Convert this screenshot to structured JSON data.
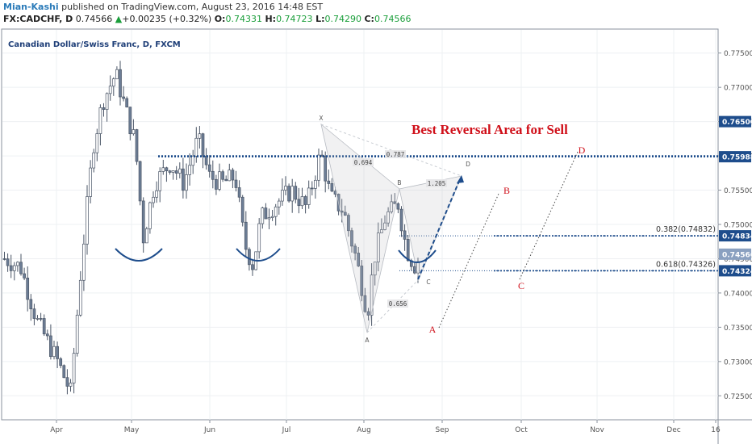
{
  "header": {
    "publisher": "Mian-Kashi",
    "published_text": "published on TradingView.com, August 23, 2016 14:48 EST",
    "symbol": "FX:CADCHF, D",
    "last": "0.74566",
    "change_arrow": "▲",
    "change": "+0.00235 (+0.32%)",
    "open_label": "O:",
    "open": "0.74331",
    "high_label": "H:",
    "high": "0.74723",
    "low_label": "L:",
    "low": "0.74290",
    "close_label": "C:",
    "close": "0.74566"
  },
  "chart_data": {
    "type": "candlestick",
    "title": "Canadian Dollar/Swiss Franc, D, FXCM",
    "ylim": [
      0.7215,
      0.7785
    ],
    "y_ticks": [
      "0.77500",
      "0.77000",
      "0.76500",
      "0.76000",
      "0.75500",
      "0.75000",
      "0.74500",
      "0.74000",
      "0.73500",
      "0.73000",
      "0.72500"
    ],
    "x_ticks": [
      "Apr",
      "May",
      "Jun",
      "Jul",
      "Aug",
      "Sep",
      "Oct",
      "Nov",
      "Dec",
      "16"
    ],
    "price_badges": [
      {
        "label": "0.76500",
        "value": 0.765,
        "color": "#1e4d8c"
      },
      {
        "label": "0.75988",
        "value": 0.75988,
        "color": "#1e4d8c"
      },
      {
        "label": "0.74834",
        "value": 0.74834,
        "color": "#1e4d8c"
      },
      {
        "label": "0.74566",
        "value": 0.74566,
        "color": "#8aa0c0"
      },
      {
        "label": "0.74324",
        "value": 0.74324,
        "color": "#1e4d8c"
      }
    ],
    "horizontal_levels": [
      {
        "value": 0.75988,
        "style": "dotted",
        "color": "#1e4d8c"
      },
      {
        "value": 0.76,
        "style": "dotted",
        "color": "#1e4d8c"
      },
      {
        "value": 0.74834,
        "style": "dotted",
        "color": "#1e4d8c",
        "label": "0.382(0.74832)"
      },
      {
        "value": 0.74324,
        "style": "dotted",
        "color": "#1e4d8c",
        "label": "0.618(0.74326)"
      }
    ],
    "annotations": {
      "headline": "Best Reversal Area for Sell",
      "pattern_points": [
        "X",
        "A",
        "B",
        "C",
        "D"
      ],
      "pattern_ratios": [
        "0.694",
        "0.787",
        "1.205",
        "0.656"
      ],
      "projection_points": [
        "A",
        "B",
        "C",
        "D"
      ]
    },
    "colors": {
      "up": "#ffffff",
      "down": "#6d7e96",
      "wick": "#4a5566",
      "headline": "#d0101a",
      "level": "#1e4d8c",
      "grid": "#eef0f3"
    }
  }
}
